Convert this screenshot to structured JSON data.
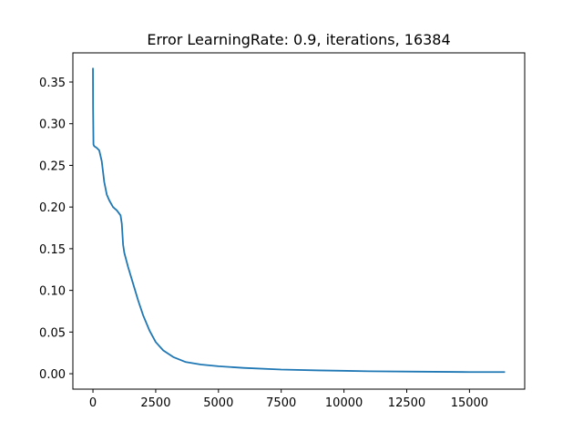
{
  "chart_data": {
    "type": "line",
    "title": "Error LearningRate: 0.9, iterations, 16384",
    "xlabel": "",
    "ylabel": "",
    "xlim": [
      -800,
      17200
    ],
    "ylim": [
      -0.0185,
      0.385
    ],
    "x_ticks": [
      0,
      2500,
      5000,
      7500,
      10000,
      12500,
      15000
    ],
    "x_tick_labels": [
      "0",
      "2500",
      "5000",
      "7500",
      "10000",
      "12500",
      "15000"
    ],
    "y_ticks": [
      0.0,
      0.05,
      0.1,
      0.15,
      0.2,
      0.25,
      0.3,
      0.35
    ],
    "y_tick_labels": [
      "0.00",
      "0.05",
      "0.10",
      "0.15",
      "0.20",
      "0.25",
      "0.30",
      "0.35"
    ],
    "grid": false,
    "legend": "none",
    "series": [
      {
        "color": "#1f77b4",
        "x": [
          0,
          5,
          20,
          50,
          150,
          250,
          350,
          450,
          550,
          650,
          800,
          950,
          1100,
          1150,
          1200,
          1250,
          1400,
          1600,
          1800,
          2000,
          2250,
          2500,
          2800,
          3200,
          3700,
          4300,
          5000,
          6000,
          7500,
          9000,
          11000,
          13000,
          15000,
          16384
        ],
        "y": [
          0.366,
          0.32,
          0.275,
          0.273,
          0.271,
          0.268,
          0.255,
          0.23,
          0.215,
          0.208,
          0.2,
          0.196,
          0.19,
          0.18,
          0.155,
          0.145,
          0.128,
          0.108,
          0.088,
          0.07,
          0.052,
          0.038,
          0.028,
          0.02,
          0.014,
          0.011,
          0.009,
          0.007,
          0.005,
          0.004,
          0.003,
          0.0025,
          0.002,
          0.002
        ]
      }
    ]
  }
}
